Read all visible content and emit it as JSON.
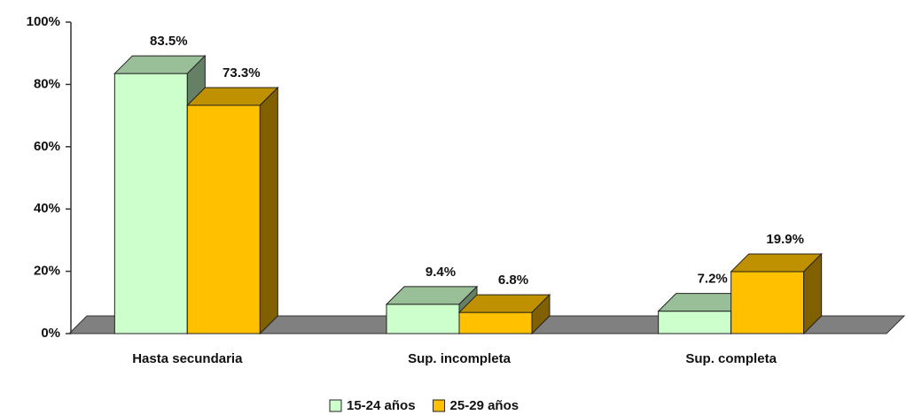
{
  "chart_data": {
    "type": "bar3d",
    "categories": [
      "Hasta secundaria",
      "Sup. incompleta",
      "Sup. completa"
    ],
    "series": [
      {
        "name": "15-24 años",
        "color": "#ccffcc",
        "values": [
          83.5,
          9.4,
          7.2
        ],
        "value_labels": [
          "83.5%",
          "9.4%",
          "7.2%"
        ]
      },
      {
        "name": "25-29 años",
        "color": "#ffc000",
        "values": [
          73.3,
          6.8,
          19.9
        ],
        "value_labels": [
          "73.3%",
          "6.8%",
          "19.9%"
        ]
      }
    ],
    "ylim": [
      0,
      100
    ],
    "yticks": [
      {
        "value": 0,
        "label": "0%"
      },
      {
        "value": 20,
        "label": "20%"
      },
      {
        "value": 40,
        "label": "40%"
      },
      {
        "value": 60,
        "label": "60%"
      },
      {
        "value": 80,
        "label": "80%"
      },
      {
        "value": 100,
        "label": "100%"
      }
    ],
    "legend": "bottom"
  }
}
